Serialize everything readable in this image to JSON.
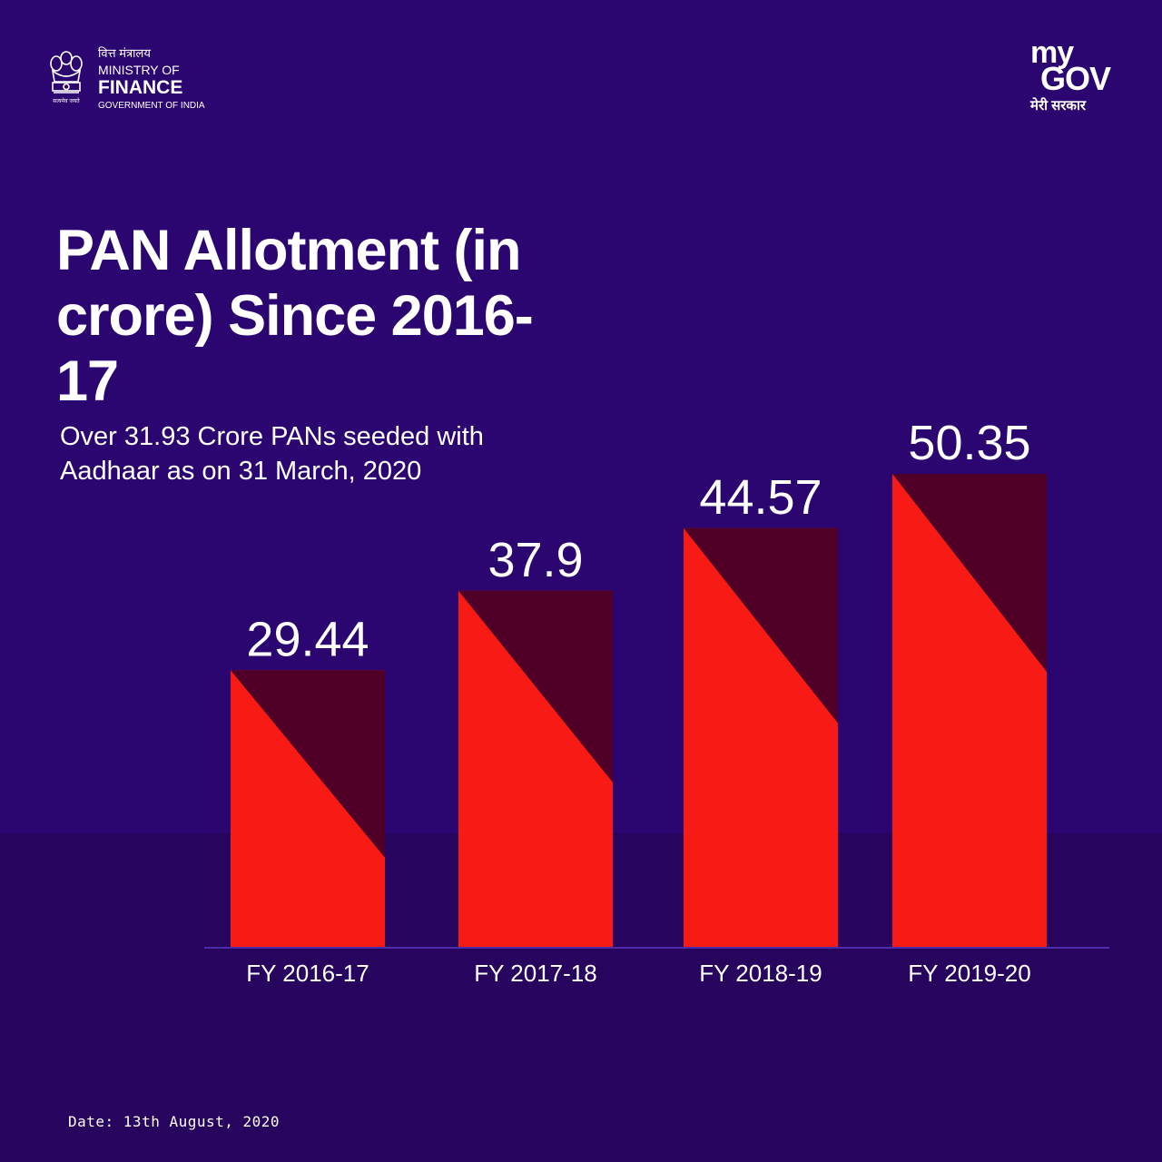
{
  "header": {
    "ministry_hindi": "वित्त मंत्रालय",
    "ministry_line1": "MINISTRY OF",
    "ministry_line2": "FINANCE",
    "ministry_line3": "GOVERNMENT OF INDIA",
    "mygov_my": "my",
    "mygov_gov": "GOV",
    "mygov_hindi": "मेरी सरकार"
  },
  "title": "PAN Allotment (in crore) Since 2016-17",
  "subtitle": "Over 31.93 Crore PANs seeded with Aadhaar as on 31 March, 2020",
  "footer": {
    "date": "Date: 13th August, 2020"
  },
  "colors": {
    "background": "#2c0670",
    "band": "#27055f",
    "bar_light": "#f81a14",
    "bar_dark": "#500027",
    "text": "#ffffff"
  },
  "chart_data": {
    "type": "bar",
    "categories": [
      "FY 2016-17",
      "FY 2017-18",
      "FY 2018-19",
      "FY 2019-20"
    ],
    "values": [
      29.44,
      37.9,
      44.57,
      50.35
    ],
    "value_labels": [
      "29.44",
      "37.9",
      "44.57",
      "50.35"
    ],
    "title": "PAN Allotment (in crore) Since 2016-17",
    "xlabel": "",
    "ylabel": "",
    "grid": false,
    "legend": "none",
    "ylim": [
      0,
      50.35
    ]
  }
}
